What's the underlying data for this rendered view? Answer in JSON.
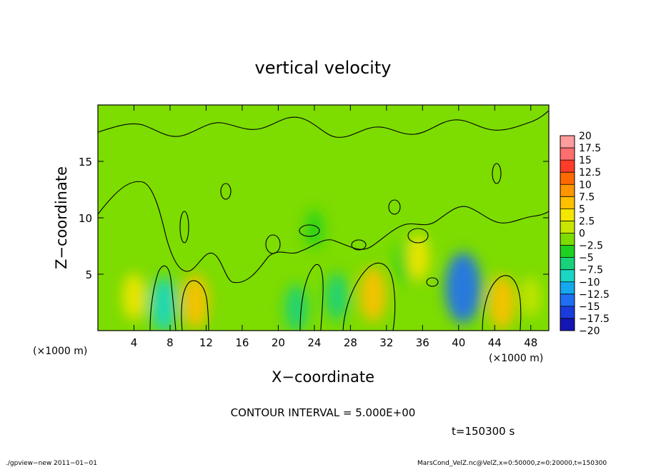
{
  "chart_data": {
    "type": "heatmap",
    "title": "vertical velocity",
    "xlabel": "X−coordinate",
    "ylabel": "Z−coordinate",
    "x_unit": "(×1000 m)",
    "xlim": [
      0,
      50
    ],
    "ylim": [
      0,
      20
    ],
    "x_ticks": [
      4,
      8,
      12,
      16,
      20,
      24,
      28,
      32,
      36,
      40,
      44,
      48
    ],
    "y_ticks": [
      5,
      10,
      15
    ],
    "colorbar": {
      "labels": [
        "20",
        "17.5",
        "15",
        "12.5",
        "10",
        "7.5",
        "5",
        "2.5",
        "0",
        "−2.5",
        "−5",
        "−7.5",
        "−10",
        "−12.5",
        "−15",
        "−17.5",
        "−20"
      ],
      "colors": [
        "#ff9c9c",
        "#ff6e6e",
        "#ff3c28",
        "#ff6a00",
        "#ff9600",
        "#ffc000",
        "#f5e600",
        "#c8e600",
        "#7ddc00",
        "#20d020",
        "#18d27a",
        "#1ad6c4",
        "#15a8ee",
        "#1f6ef4",
        "#1a3cdc",
        "#1515b4",
        "#5a00c8"
      ]
    },
    "contour_interval_text": "CONTOUR INTERVAL = 5.000E+00",
    "features": [
      {
        "x": 40.5,
        "z": 3.8,
        "value": -12.5
      },
      {
        "x": 7.3,
        "z": 2.3,
        "value": -7.5
      },
      {
        "x": 22.0,
        "z": 2.0,
        "value": -5
      },
      {
        "x": 26.5,
        "z": 3.0,
        "value": -5
      },
      {
        "x": 34.0,
        "z": 6.0,
        "value": -3
      },
      {
        "x": 24.0,
        "z": 9.0,
        "value": -2
      },
      {
        "x": 10.8,
        "z": 2.6,
        "value": 7.5
      },
      {
        "x": 30.5,
        "z": 3.2,
        "value": 7.5
      },
      {
        "x": 44.8,
        "z": 2.5,
        "value": 7.5
      },
      {
        "x": 4.0,
        "z": 3.0,
        "value": 5
      },
      {
        "x": 35.5,
        "z": 6.5,
        "value": 5
      },
      {
        "x": 48.0,
        "z": 3.0,
        "value": 3
      }
    ]
  },
  "time_label": "t=150300 s",
  "footer": {
    "left": "./gpview−new  2011−01−01",
    "right": "MarsCond_VelZ.nc@VelZ,x=0:50000,z=0:20000,t=150300"
  }
}
